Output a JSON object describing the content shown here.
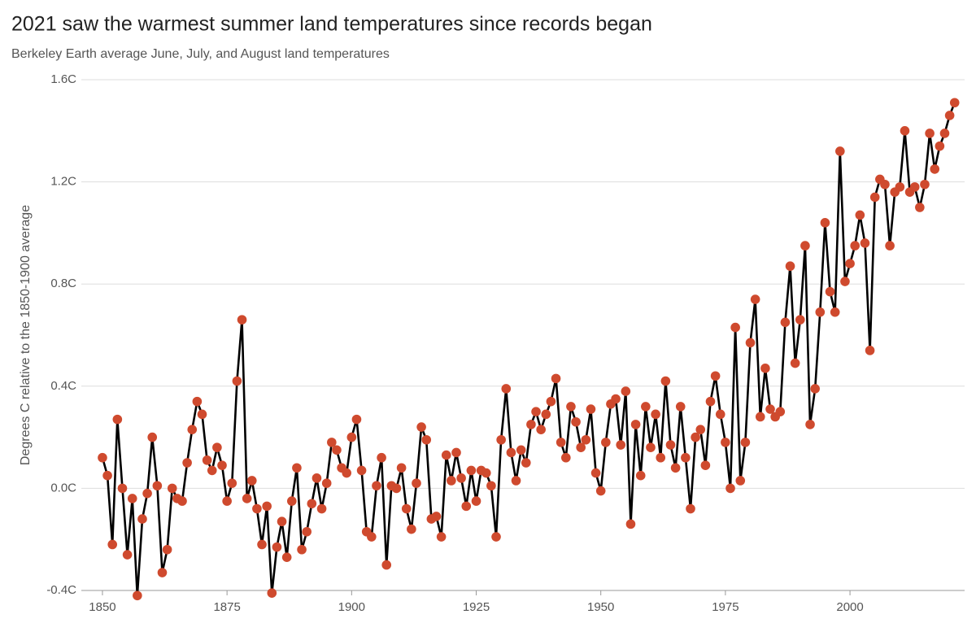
{
  "chart_data": {
    "type": "line",
    "title": "2021 saw the warmest summer land temperatures since records began",
    "subtitle": "Berkeley Earth average June, July, and August land temperatures",
    "y_label": "Degrees C relative to the 1850-1900 average",
    "x": [
      1850,
      1851,
      1852,
      1853,
      1854,
      1855,
      1856,
      1857,
      1858,
      1859,
      1860,
      1861,
      1862,
      1863,
      1864,
      1865,
      1866,
      1867,
      1868,
      1869,
      1870,
      1871,
      1872,
      1873,
      1874,
      1875,
      1876,
      1877,
      1878,
      1879,
      1880,
      1881,
      1882,
      1883,
      1884,
      1885,
      1886,
      1887,
      1888,
      1889,
      1890,
      1891,
      1892,
      1893,
      1894,
      1895,
      1896,
      1897,
      1898,
      1899,
      1900,
      1901,
      1902,
      1903,
      1904,
      1905,
      1906,
      1907,
      1908,
      1909,
      1910,
      1911,
      1912,
      1913,
      1914,
      1915,
      1916,
      1917,
      1918,
      1919,
      1920,
      1921,
      1922,
      1923,
      1924,
      1925,
      1926,
      1927,
      1928,
      1929,
      1930,
      1931,
      1932,
      1933,
      1934,
      1935,
      1936,
      1937,
      1938,
      1939,
      1940,
      1941,
      1942,
      1943,
      1944,
      1945,
      1946,
      1947,
      1948,
      1949,
      1950,
      1951,
      1952,
      1953,
      1954,
      1955,
      1956,
      1957,
      1958,
      1959,
      1960,
      1961,
      1962,
      1963,
      1964,
      1965,
      1966,
      1967,
      1968,
      1969,
      1970,
      1971,
      1972,
      1973,
      1974,
      1975,
      1976,
      1977,
      1978,
      1979,
      1980,
      1981,
      1982,
      1983,
      1984,
      1985,
      1986,
      1987,
      1988,
      1989,
      1990,
      1991,
      1992,
      1993,
      1994,
      1995,
      1996,
      1997,
      1998,
      1999,
      2000,
      2001,
      2002,
      2003,
      2004,
      2005,
      2006,
      2007,
      2008,
      2009,
      2010,
      2011,
      2012,
      2013,
      2014,
      2015,
      2016,
      2017,
      2018,
      2019,
      2020,
      2021
    ],
    "values": [
      0.12,
      0.05,
      -0.22,
      0.27,
      0.0,
      -0.26,
      -0.04,
      -0.42,
      -0.12,
      -0.02,
      0.2,
      0.01,
      -0.33,
      -0.24,
      0.0,
      -0.04,
      -0.05,
      0.1,
      0.23,
      0.34,
      0.29,
      0.11,
      0.07,
      0.16,
      0.09,
      -0.05,
      0.02,
      0.42,
      0.66,
      -0.04,
      0.03,
      -0.08,
      -0.22,
      -0.07,
      -0.41,
      -0.23,
      -0.13,
      -0.27,
      -0.05,
      0.08,
      -0.24,
      -0.17,
      -0.06,
      0.04,
      -0.08,
      0.02,
      0.18,
      0.15,
      0.08,
      0.06,
      0.2,
      0.27,
      0.07,
      -0.17,
      -0.19,
      0.01,
      0.12,
      -0.3,
      0.01,
      0.0,
      0.08,
      -0.08,
      -0.16,
      0.02,
      0.24,
      0.19,
      -0.12,
      -0.11,
      -0.19,
      0.13,
      0.03,
      0.14,
      0.04,
      -0.07,
      0.07,
      -0.05,
      0.07,
      0.06,
      0.01,
      -0.19,
      0.19,
      0.39,
      0.14,
      0.03,
      0.15,
      0.1,
      0.25,
      0.3,
      0.23,
      0.29,
      0.34,
      0.43,
      0.18,
      0.12,
      0.32,
      0.26,
      0.16,
      0.19,
      0.31,
      0.06,
      -0.01,
      0.18,
      0.33,
      0.35,
      0.17,
      0.38,
      -0.14,
      0.25,
      0.05,
      0.32,
      0.16,
      0.29,
      0.12,
      0.42,
      0.17,
      0.08,
      0.32,
      0.12,
      -0.08,
      0.2,
      0.23,
      0.09,
      0.34,
      0.44,
      0.29,
      0.18,
      0.0,
      0.63,
      0.03,
      0.18,
      0.57,
      0.74,
      0.28,
      0.47,
      0.31,
      0.28,
      0.3,
      0.65,
      0.87,
      0.49,
      0.66,
      0.95,
      0.25,
      0.39,
      0.69,
      1.04,
      0.77,
      0.69,
      1.32,
      0.81,
      0.88,
      0.95,
      1.07,
      0.96,
      0.54,
      1.14,
      1.21,
      1.19,
      0.95,
      1.16,
      1.18,
      1.4,
      1.16,
      1.18,
      1.1,
      1.19,
      1.39,
      1.25,
      1.34,
      1.39,
      1.46,
      1.51
    ],
    "color": "#000000",
    "marker_color": "#cf4a2e",
    "xlim": [
      1848,
      2023
    ],
    "xticks": [
      1850,
      1875,
      1900,
      1925,
      1950,
      1975,
      2000
    ],
    "ylim": [
      -0.4,
      1.6
    ],
    "yticks": [
      {
        "value": -0.4,
        "label": "-0.4C"
      },
      {
        "value": 0.0,
        "label": "0.0C"
      },
      {
        "value": 0.4,
        "label": "0.4C"
      },
      {
        "value": 0.8,
        "label": "0.8C"
      },
      {
        "value": 1.2,
        "label": "1.2C"
      },
      {
        "value": 1.6,
        "label": "1.6C"
      }
    ],
    "grid": true
  }
}
